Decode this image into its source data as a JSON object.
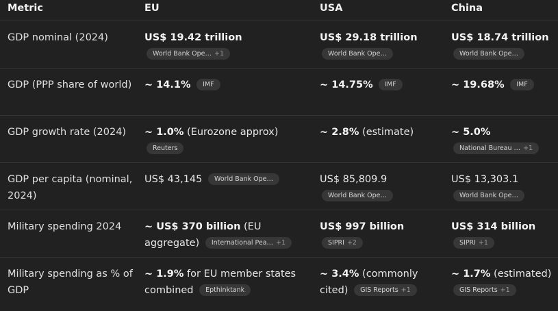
{
  "headers": {
    "metric": "Metric",
    "eu": "EU",
    "usa": "USA",
    "china": "China"
  },
  "rows": {
    "gdp_nominal": {
      "metric": "GDP nominal (2024)",
      "eu": {
        "value": "US$ 19.42 trillion",
        "source": "World Bank Ope…",
        "more": "+1"
      },
      "usa": {
        "value": "US$ 29.18 trillion",
        "source": "World Bank Ope…"
      },
      "china": {
        "value": "US$ 18.74 trillion",
        "source": "World Bank Ope…"
      }
    },
    "gdp_ppp": {
      "metric": "GDP (PPP share of world)",
      "eu": {
        "prefix": "~ ",
        "value": "14.1%",
        "source": "IMF"
      },
      "usa": {
        "prefix": "~ ",
        "value": "14.75%",
        "source": "IMF"
      },
      "china": {
        "prefix": "~ ",
        "value": "19.68%",
        "source": "IMF"
      }
    },
    "gdp_growth": {
      "metric": "GDP growth rate (2024)",
      "eu": {
        "prefix": "~ ",
        "value": "1.0%",
        "suffix": " (Eurozone approx)",
        "source": "Reuters"
      },
      "usa": {
        "prefix": "~ ",
        "value": "2.8%",
        "suffix": " (estimate)"
      },
      "china": {
        "prefix": "~ ",
        "value": "5.0%",
        "source": "National Bureau …",
        "more": "+1"
      }
    },
    "gdp_per_capita": {
      "metric": "GDP per capita (nominal, 2024)",
      "eu": {
        "value": "US$ 43,145",
        "source": "World Bank Ope…"
      },
      "usa": {
        "value": "US$ 85,809.9",
        "source": "World Bank Ope…"
      },
      "china": {
        "value": "US$ 13,303.1",
        "source": "World Bank Ope…"
      }
    },
    "military": {
      "metric": "Military spending 2024",
      "eu": {
        "prefix": "~ ",
        "value": "US$ 370 billion",
        "suffix": " (EU aggregate)",
        "source": "International Pea…",
        "more": "+1"
      },
      "usa": {
        "value": "US$ 997 billion",
        "source": "SIPRI",
        "more": "+2"
      },
      "china": {
        "value": "US$ 314 billion",
        "source": "SIPRI",
        "more": "+1"
      }
    },
    "military_pct": {
      "metric": "Military spending as % of GDP",
      "eu": {
        "prefix": "~ ",
        "value": "1.9%",
        "suffix": " for EU member states combined",
        "source": "Epthinktank"
      },
      "usa": {
        "prefix": "~ ",
        "value": "3.4%",
        "suffix": " (commonly cited)",
        "source": "GIS Reports",
        "more": "+1"
      },
      "china": {
        "prefix": "~ ",
        "value": "1.7%",
        "suffix": " (estimated)",
        "source": "GIS Reports",
        "more": "+1"
      }
    }
  },
  "colors": {
    "background": "#212121",
    "chip": "#373737",
    "divider": "#363636"
  }
}
